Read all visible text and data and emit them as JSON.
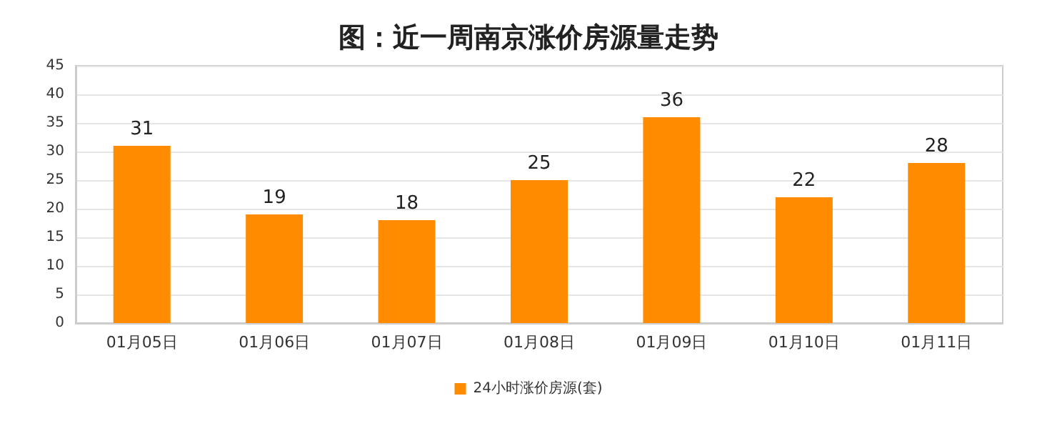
{
  "chart_data": {
    "type": "bar",
    "title": "图：近一周南京涨价房源量走势",
    "categories": [
      "01月05日",
      "01月06日",
      "01月07日",
      "01月08日",
      "01月09日",
      "01月10日",
      "01月11日"
    ],
    "series": [
      {
        "name": "24小时涨价房源(套)",
        "color": "#ff8c00",
        "values": [
          31,
          19,
          18,
          25,
          36,
          22,
          28
        ]
      }
    ],
    "ylim": [
      0,
      45
    ],
    "yticks": [
      0,
      5,
      10,
      15,
      20,
      25,
      30,
      35,
      40,
      45
    ],
    "grid": "y",
    "legend": "bottom",
    "data_labels": true
  }
}
